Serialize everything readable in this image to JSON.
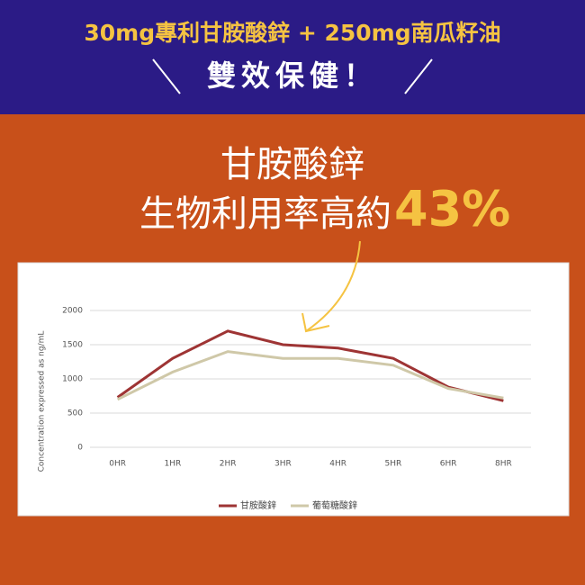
{
  "header": {
    "line1": "30mg專利甘胺酸鋅 + 250mg南瓜籽油",
    "line2": "雙效保健！"
  },
  "headline": {
    "line1": "甘胺酸鋅",
    "line2": "生物利用率高約",
    "highlight": "43%"
  },
  "chart_data": {
    "type": "line",
    "categories": [
      "0HR",
      "1HR",
      "2HR",
      "3HR",
      "4HR",
      "5HR",
      "6HR",
      "8HR"
    ],
    "series": [
      {
        "name": "甘胺酸鋅",
        "color": "#9e3434",
        "values": [
          730,
          1300,
          1700,
          1500,
          1450,
          1300,
          880,
          680
        ]
      },
      {
        "name": "葡萄糖酸鋅",
        "color": "#cfc8a8",
        "values": [
          700,
          1100,
          1400,
          1300,
          1300,
          1200,
          860,
          720
        ]
      }
    ],
    "y_label": "Concentration expressed as ng/mL",
    "ylim": [
      0,
      2000
    ],
    "yticks": [
      0,
      500,
      1000,
      1500,
      2000
    ],
    "grid": true
  }
}
